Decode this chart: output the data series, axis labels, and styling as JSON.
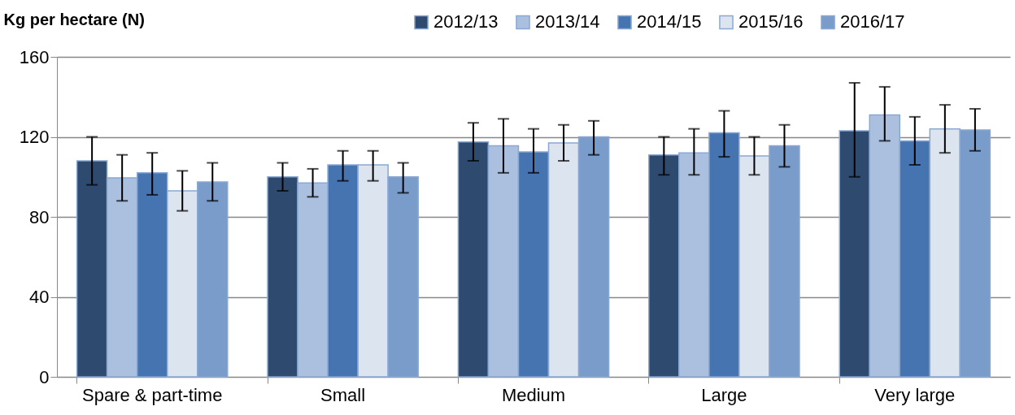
{
  "chart_data": {
    "type": "bar",
    "ylabel": "Kg per hectare (N)",
    "categories": [
      "Spare & part-time",
      "Small",
      "Medium",
      "Large",
      "Very large"
    ],
    "series": [
      {
        "name": "2012/13",
        "color": "#2e4a6e",
        "values": [
          108,
          100,
          117.5,
          111,
          123
        ],
        "errors": [
          [
            96,
            120
          ],
          [
            93,
            107
          ],
          [
            108,
            127
          ],
          [
            101,
            120
          ],
          [
            100,
            147
          ]
        ]
      },
      {
        "name": "2013/14",
        "color": "#aac0de",
        "values": [
          99.5,
          97,
          115.5,
          112,
          131
        ],
        "errors": [
          [
            88,
            111
          ],
          [
            90,
            104
          ],
          [
            102,
            129
          ],
          [
            101,
            124
          ],
          [
            118,
            145
          ]
        ]
      },
      {
        "name": "2014/15",
        "color": "#4674b0",
        "values": [
          102,
          106,
          112.5,
          122,
          118
        ],
        "errors": [
          [
            91,
            112
          ],
          [
            98,
            113
          ],
          [
            102,
            124
          ],
          [
            110,
            133
          ],
          [
            106,
            130
          ]
        ]
      },
      {
        "name": "2015/16",
        "color": "#dce4f0",
        "values": [
          93,
          106,
          117,
          110.5,
          124
        ],
        "errors": [
          [
            83,
            103
          ],
          [
            98,
            113
          ],
          [
            108,
            126
          ],
          [
            101,
            120
          ],
          [
            112,
            136
          ]
        ]
      },
      {
        "name": "2016/17",
        "color": "#7a9cca",
        "values": [
          97.5,
          100,
          120,
          115.5,
          123.5
        ],
        "errors": [
          [
            88,
            107
          ],
          [
            92,
            107
          ],
          [
            111,
            128
          ],
          [
            105,
            126
          ],
          [
            113,
            134
          ]
        ]
      }
    ],
    "ylim": [
      0,
      160
    ],
    "yticks": [
      0,
      40,
      80,
      120,
      160
    ],
    "grid": "y",
    "legend": "top right"
  }
}
